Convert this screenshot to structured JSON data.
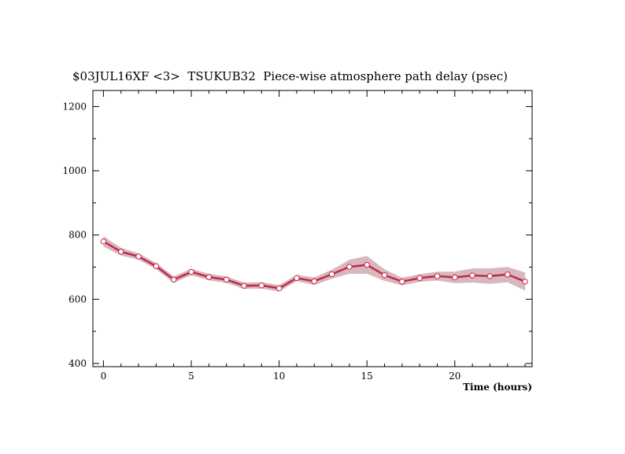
{
  "chart_data": {
    "type": "line",
    "title": "$03JUL16XF <3>  TSUKUB32  Piece-wise atmosphere path delay (psec)",
    "xlabel": "Time (hours)",
    "ylabel": "",
    "xlim": [
      -0.6,
      24.4
    ],
    "ylim": [
      390,
      1250
    ],
    "xticks": [
      0,
      5,
      10,
      15,
      20
    ],
    "xticks_minor": [
      1,
      2,
      3,
      4,
      6,
      7,
      8,
      9,
      11,
      12,
      13,
      14,
      16,
      17,
      18,
      19,
      21,
      22,
      23,
      24
    ],
    "yticks": [
      400,
      600,
      800,
      1000,
      1200
    ],
    "yticks_minor": [
      500,
      700,
      900,
      1100
    ],
    "grid": false,
    "series": [
      {
        "x": [
          0,
          1,
          2,
          3,
          4,
          5,
          6,
          7,
          8,
          9,
          10,
          11,
          12,
          13,
          14,
          15,
          16,
          17,
          18,
          19,
          20,
          21,
          22,
          23,
          24
        ],
        "values": [
          780,
          748,
          733,
          703,
          661,
          685,
          669,
          661,
          642,
          643,
          634,
          666,
          656,
          678,
          701,
          707,
          675,
          655,
          666,
          672,
          668,
          674,
          672,
          677,
          655
        ],
        "error": [
          16,
          12,
          10,
          10,
          10,
          10,
          10,
          10,
          10,
          10,
          10,
          10,
          12,
          14,
          22,
          28,
          18,
          12,
          12,
          14,
          18,
          22,
          24,
          24,
          28
        ],
        "line_color": "#c0284e",
        "band_color": "#d8b8bc",
        "marker": "open-circle"
      }
    ]
  }
}
